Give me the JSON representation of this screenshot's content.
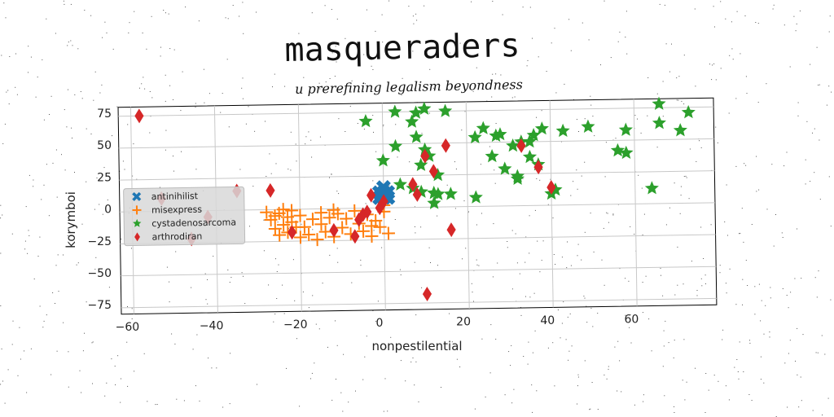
{
  "chart_data": {
    "type": "scatter",
    "title": "masqueraders",
    "subtitle": "u prerefining legalism beyondness",
    "xlabel": "nonpestilential",
    "ylabel": "korymboi",
    "xlim": [
      -63,
      79
    ],
    "ylim": [
      -80,
      82
    ],
    "xticks": [
      -60,
      -40,
      -20,
      0,
      20,
      40,
      60
    ],
    "yticks": [
      75,
      50,
      25,
      0,
      -25,
      -50,
      -75
    ],
    "grid": true,
    "legend_position": "center-left",
    "series": [
      {
        "name": "antinihilist",
        "marker": "x-filled",
        "color": "#1f77b4",
        "points": [
          [
            -1,
            12
          ],
          [
            0,
            12
          ],
          [
            1,
            12
          ],
          [
            -1,
            8
          ],
          [
            0,
            8
          ],
          [
            1,
            8
          ],
          [
            0,
            16
          ]
        ]
      },
      {
        "name": "misexpress",
        "marker": "plus",
        "color": "#ff7f0e",
        "points": [
          [
            -28,
            -2
          ],
          [
            -27,
            -8
          ],
          [
            -26,
            -15
          ],
          [
            -25,
            -3
          ],
          [
            -25,
            -20
          ],
          [
            -24,
            0
          ],
          [
            -24,
            -12
          ],
          [
            -23,
            -6
          ],
          [
            -23,
            -18
          ],
          [
            -22,
            -1
          ],
          [
            -22,
            -10
          ],
          [
            -21,
            -14
          ],
          [
            -20,
            -5
          ],
          [
            -20,
            -22
          ],
          [
            -18,
            -20
          ],
          [
            -17,
            -8
          ],
          [
            -16,
            -24
          ],
          [
            -15,
            -3
          ],
          [
            -15,
            -12
          ],
          [
            -14,
            -18
          ],
          [
            -13,
            -7
          ],
          [
            -12,
            -22
          ],
          [
            -11,
            -4
          ],
          [
            -10,
            -15
          ],
          [
            -9,
            -8
          ],
          [
            -8,
            -20
          ],
          [
            -7,
            -2
          ],
          [
            -6,
            -12
          ],
          [
            -5,
            -18
          ],
          [
            -4,
            -5
          ],
          [
            -3,
            -22
          ],
          [
            -2,
            -10
          ],
          [
            -1,
            -15
          ],
          [
            0,
            -3
          ],
          [
            1,
            -20
          ],
          [
            -3,
            -14
          ],
          [
            -19,
            -14
          ],
          [
            -26,
            -5
          ],
          [
            -12,
            -1
          ],
          [
            0,
            2
          ]
        ]
      },
      {
        "name": "cystadenosarcoma",
        "marker": "star",
        "color": "#2ca02c",
        "points": [
          [
            -4,
            68
          ],
          [
            0,
            37
          ],
          [
            3,
            75
          ],
          [
            3,
            48
          ],
          [
            4,
            18
          ],
          [
            7,
            15
          ],
          [
            7,
            67
          ],
          [
            8,
            74
          ],
          [
            8,
            55
          ],
          [
            9,
            33
          ],
          [
            9,
            12
          ],
          [
            10,
            45
          ],
          [
            10,
            77
          ],
          [
            11,
            40
          ],
          [
            12,
            11
          ],
          [
            12,
            3
          ],
          [
            13,
            10
          ],
          [
            13,
            25
          ],
          [
            15,
            75
          ],
          [
            16,
            10
          ],
          [
            22,
            7
          ],
          [
            22,
            54
          ],
          [
            24,
            61
          ],
          [
            26,
            39
          ],
          [
            27,
            55
          ],
          [
            28,
            56
          ],
          [
            29,
            29
          ],
          [
            31,
            47
          ],
          [
            32,
            21
          ],
          [
            32,
            23
          ],
          [
            33,
            50
          ],
          [
            35,
            38
          ],
          [
            35,
            50
          ],
          [
            36,
            55
          ],
          [
            37,
            32
          ],
          [
            38,
            60
          ],
          [
            40,
            9
          ],
          [
            41,
            12
          ],
          [
            43,
            58
          ],
          [
            49,
            61
          ],
          [
            56,
            42
          ],
          [
            58,
            40
          ],
          [
            58,
            58
          ],
          [
            64,
            12
          ],
          [
            66,
            78
          ],
          [
            66,
            63
          ],
          [
            71,
            57
          ],
          [
            73,
            71
          ]
        ]
      },
      {
        "name": "arthrodiran",
        "marker": "diamond",
        "color": "#d62728",
        "points": [
          [
            -58,
            75
          ],
          [
            -53,
            10
          ],
          [
            -46,
            -22
          ],
          [
            -42,
            -5
          ],
          [
            -35,
            15
          ],
          [
            -27,
            15
          ],
          [
            -22,
            -18
          ],
          [
            -12,
            -17
          ],
          [
            -7,
            -22
          ],
          [
            -6,
            -9
          ],
          [
            -5,
            -5
          ],
          [
            -4,
            -3
          ],
          [
            -3,
            10
          ],
          [
            -1,
            0
          ],
          [
            0,
            5
          ],
          [
            7,
            18
          ],
          [
            8,
            10
          ],
          [
            10,
            -68
          ],
          [
            10,
            40
          ],
          [
            12,
            28
          ],
          [
            15,
            48
          ],
          [
            16,
            -18
          ],
          [
            33,
            47
          ],
          [
            37,
            30
          ],
          [
            40,
            14
          ]
        ]
      }
    ]
  }
}
